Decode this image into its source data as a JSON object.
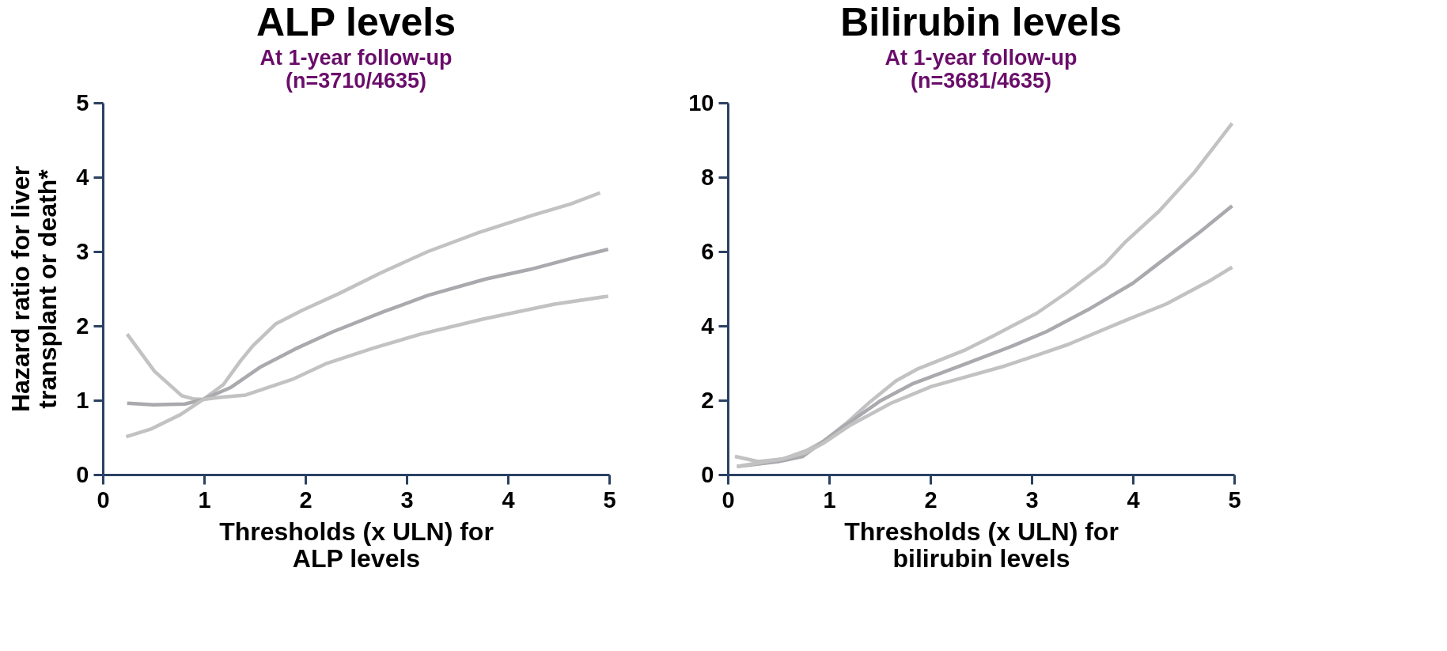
{
  "chart_data": [
    {
      "type": "line",
      "title": "ALP levels",
      "subtitle": "At 1-year follow-up\n(n=3710/4635)",
      "xlabel": "Thresholds (x ULN) for\nALP levels",
      "ylabel": "Hazard ratio for liver\ntransplant or death*",
      "xlim": [
        0,
        5
      ],
      "xticks": [
        0,
        1,
        2,
        3,
        4,
        5
      ],
      "ylim": [
        0,
        5
      ],
      "yticks": [
        0,
        1,
        2,
        3,
        4,
        5
      ],
      "grid": false,
      "line_style": "solid",
      "series": [
        {
          "color": "#c2c2c2",
          "x": [
            0.24,
            0.51,
            0.78,
            0.89,
            0.99,
            1.19,
            1.36,
            1.48,
            1.71,
            1.97,
            2.34,
            2.74,
            3.21,
            3.72,
            4.25,
            4.62,
            4.91
          ],
          "values": [
            1.89,
            1.39,
            1.06,
            1.02,
            1.01,
            1.21,
            1.53,
            1.73,
            2.03,
            2.21,
            2.44,
            2.71,
            3.0,
            3.26,
            3.49,
            3.64,
            3.79
          ]
        },
        {
          "color": "#a9a9ae",
          "x": [
            0.24,
            0.5,
            0.81,
            0.99,
            1.26,
            1.56,
            1.9,
            2.27,
            2.77,
            3.21,
            3.78,
            4.22,
            4.69,
            4.99
          ],
          "values": [
            0.96,
            0.94,
            0.95,
            1.01,
            1.17,
            1.45,
            1.69,
            1.92,
            2.19,
            2.41,
            2.63,
            2.76,
            2.93,
            3.03
          ]
        },
        {
          "color": "#c2c2c2",
          "x": [
            0.23,
            0.47,
            0.77,
            0.99,
            1.16,
            1.41,
            1.87,
            2.2,
            2.67,
            3.14,
            3.75,
            4.45,
            4.99
          ],
          "values": [
            0.51,
            0.61,
            0.81,
            1.01,
            1.04,
            1.07,
            1.28,
            1.49,
            1.7,
            1.89,
            2.09,
            2.29,
            2.4
          ]
        }
      ]
    },
    {
      "type": "line",
      "title": "Bilirubin levels",
      "subtitle": "At 1-year follow-up\n(n=3681/4635)",
      "xlabel": "Thresholds (x ULN) for\nbilirubin levels",
      "xlim": [
        0,
        5
      ],
      "xticks": [
        0,
        1,
        2,
        3,
        4,
        5
      ],
      "ylim": [
        0,
        10
      ],
      "yticks": [
        0,
        2,
        4,
        6,
        8,
        10
      ],
      "grid": false,
      "line_style": "solid",
      "series": [
        {
          "color": "#c2c2c2",
          "x": [
            0.07,
            0.3,
            0.54,
            0.77,
            0.94,
            1.17,
            1.41,
            1.66,
            1.88,
            2.35,
            2.62,
            3.05,
            3.36,
            3.72,
            3.93,
            4.26,
            4.61,
            4.98
          ],
          "values": [
            0.49,
            0.35,
            0.42,
            0.64,
            0.89,
            1.38,
            1.97,
            2.52,
            2.85,
            3.36,
            3.73,
            4.34,
            4.92,
            5.66,
            6.27,
            7.09,
            8.14,
            9.45
          ]
        },
        {
          "color": "#a9a9ae",
          "x": [
            0.09,
            0.5,
            0.74,
            1.11,
            1.51,
            1.83,
            2.35,
            2.82,
            3.15,
            3.56,
            4.0,
            4.23,
            4.66,
            4.98
          ],
          "values": [
            0.22,
            0.35,
            0.49,
            1.23,
            1.99,
            2.45,
            2.98,
            3.47,
            3.85,
            4.44,
            5.15,
            5.63,
            6.52,
            7.23
          ]
        },
        {
          "color": "#c2c2c2",
          "x": [
            0.09,
            0.54,
            0.77,
            0.94,
            1.21,
            1.61,
            2.01,
            2.72,
            3.05,
            3.36,
            3.93,
            4.33,
            4.77,
            4.98
          ],
          "values": [
            0.22,
            0.42,
            0.59,
            0.84,
            1.33,
            1.92,
            2.37,
            2.91,
            3.21,
            3.5,
            4.15,
            4.59,
            5.23,
            5.58
          ]
        }
      ]
    }
  ]
}
